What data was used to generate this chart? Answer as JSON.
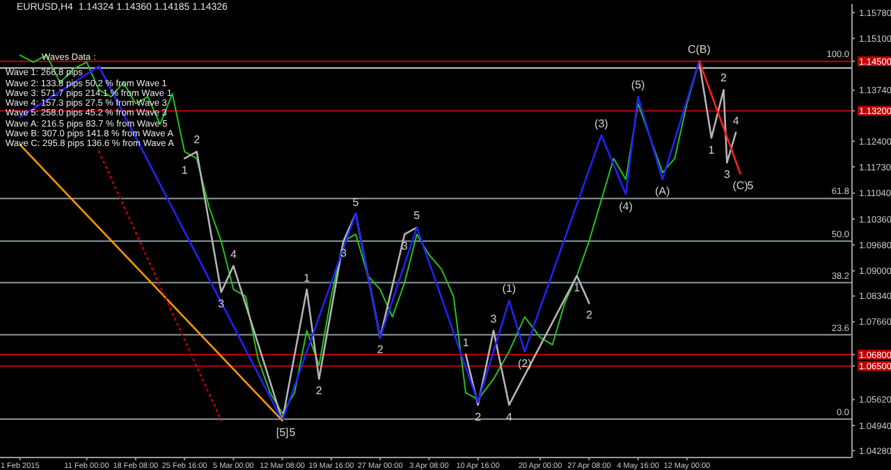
{
  "chart_data": {
    "type": "line",
    "title": "EURUSD,H4  1.14324 1.14360 1.14185 1.14326",
    "x": [
      "2015-02-01T00:00",
      "2015-02-03T00:00",
      "2015-02-05T00:00",
      "2015-02-07T00:00",
      "2015-02-09T00:00",
      "2015-02-11T00:00",
      "2015-02-12T20:00",
      "2015-02-14T16:00",
      "2015-02-16T12:00",
      "2015-02-18T08:00",
      "2015-02-20T04:00",
      "2015-02-22T00:00",
      "2015-02-23T20:00",
      "2015-02-25T16:00",
      "2015-02-27T12:00",
      "2015-03-01T08:00",
      "2015-03-03T04:00",
      "2015-03-05T00:00",
      "2015-03-06T20:00",
      "2015-03-08T16:00",
      "2015-03-10T12:00",
      "2015-03-12T08:00",
      "2015-03-14T04:00",
      "2015-03-16T00:00",
      "2015-03-17T20:00",
      "2015-03-19T16:00",
      "2015-03-21T12:00",
      "2015-03-23T08:00",
      "2015-03-25T04:00",
      "2015-03-27T00:00",
      "2015-03-28T20:00",
      "2015-03-30T16:00",
      "2015-04-01T12:00",
      "2015-04-03T08:00",
      "2015-04-05T04:00",
      "2015-04-07T00:00",
      "2015-04-08T20:00",
      "2015-04-10T16:00",
      "2015-04-13T00:00",
      "2015-04-15T08:00",
      "2015-04-17T16:00",
      "2015-04-20T00:00",
      "2015-04-21T20:00",
      "2015-04-23T16:00",
      "2015-04-25T12:00",
      "2015-04-27T08:00",
      "2015-04-29T04:00",
      "2015-05-01T00:00",
      "2015-05-02T20:00",
      "2015-05-04T16:00",
      "2015-05-06T12:00",
      "2015-05-08T08:00",
      "2015-05-10T04:00",
      "2015-05-12T00:00",
      "2015-05-13T20:00"
    ],
    "xlim": [
      "2015-01-29T00:00",
      "2015-06-05T18:00"
    ],
    "xticks": [
      {
        "value": "2015-02-01T00:00",
        "label": "1 Feb 2015"
      },
      {
        "value": "2015-02-11T00:00",
        "label": "11 Feb 00:00"
      },
      {
        "value": "2015-02-18T08:00",
        "label": "18 Feb 08:00"
      },
      {
        "value": "2015-02-25T16:00",
        "label": "25 Feb 16:00"
      },
      {
        "value": "2015-03-05T00:00",
        "label": "5 Mar 00:00"
      },
      {
        "value": "2015-03-12T08:00",
        "label": "12 Mar 08:00"
      },
      {
        "value": "2015-03-19T16:00",
        "label": "19 Mar 16:00"
      },
      {
        "value": "2015-03-27T00:00",
        "label": "27 Mar 00:00"
      },
      {
        "value": "2015-04-03T08:00",
        "label": "3 Apr 08:00"
      },
      {
        "value": "2015-04-10T16:00",
        "label": "10 Apr 16:00"
      },
      {
        "value": "2015-04-20T00:00",
        "label": "20 Apr 00:00"
      },
      {
        "value": "2015-04-27T08:00",
        "label": "27 Apr 08:00"
      },
      {
        "value": "2015-05-04T16:00",
        "label": "4 May 16:00"
      },
      {
        "value": "2015-05-12T00:00",
        "label": "12 May 00:00"
      }
    ],
    "ylim": [
      1.041,
      1.16
    ],
    "yticks": [
      {
        "value": 1.1578,
        "label": "1.15780"
      },
      {
        "value": 1.151,
        "label": "1.15100"
      },
      {
        "value": 1.145,
        "label": "1.14500"
      },
      {
        "value": 1.1374,
        "label": "1.13740"
      },
      {
        "value": 1.132,
        "label": "1.13200"
      },
      {
        "value": 1.124,
        "label": "1.12400"
      },
      {
        "value": 1.1173,
        "label": "1.11730"
      },
      {
        "value": 1.1104,
        "label": "1.11040"
      },
      {
        "value": 1.1036,
        "label": "1.10360"
      },
      {
        "value": 1.0968,
        "label": "1.09680"
      },
      {
        "value": 1.09,
        "label": "1.09000"
      },
      {
        "value": 1.0834,
        "label": "1.08340"
      },
      {
        "value": 1.0766,
        "label": "1.07660"
      },
      {
        "value": 1.068,
        "label": "1.06800"
      },
      {
        "value": 1.065,
        "label": "1.06500"
      },
      {
        "value": 1.0562,
        "label": "1.05620"
      },
      {
        "value": 1.0494,
        "label": "1.04940"
      },
      {
        "value": 1.0428,
        "label": "1.04280"
      }
    ],
    "marker": "none",
    "series": [
      {
        "color": "#22c322",
        "values": [
          1.1466,
          1.1448,
          1.1466,
          1.1394,
          1.143,
          1.1448,
          1.1375,
          1.1357,
          1.1394,
          1.1339,
          1.1357,
          1.1285,
          1.1365,
          1.1213,
          1.1195,
          1.1068,
          1.0978,
          1.0851,
          1.0833,
          1.067,
          1.058,
          1.0526,
          1.058,
          1.0743,
          1.0652,
          1.0833,
          1.0978,
          1.0996,
          1.0887,
          1.0851,
          1.0779,
          1.0869,
          1.0996,
          1.0942,
          1.0905,
          1.0833,
          1.058,
          1.0562,
          1.0616,
          1.0688,
          1.0779,
          1.0725,
          1.0706,
          1.0815,
          1.0887,
          1.0978,
          1.1086,
          1.1195,
          1.114,
          1.1339,
          1.1249,
          1.1158,
          1.1195,
          1.1339,
          1.145
        ]
      },
      {
        "color": "#b4b4b4",
        "x": [
          "2015-02-25T16:00",
          "2015-02-27T12:00",
          "2015-03-03T04:00",
          "2015-03-05T00:00",
          "2015-03-12T08:00",
          "2015-03-16T00:00",
          "2015-03-17T20:00",
          "2015-03-21T12:00",
          "2015-03-23T08:00",
          "2015-03-27T00:00",
          "2015-03-30T16:00",
          "2015-04-01T12:00"
        ],
        "values": [
          1.1195,
          1.1213,
          1.0844,
          1.0913,
          1.0507,
          1.0851,
          1.0616,
          1.0978,
          1.105,
          1.0725,
          1.0996,
          1.1014
        ]
      },
      {
        "color": "#b4b4b4",
        "x": [
          "2015-04-08T20:00",
          "2015-04-10T16:00",
          "2015-04-13T00:00",
          "2015-04-15T08:00",
          "2015-04-25T12:00",
          "2015-04-27T08:00"
        ],
        "values": [
          1.0681,
          1.0548,
          1.0743,
          1.0548,
          1.0887,
          1.0815
        ]
      },
      {
        "color": "#b4b4b4",
        "x": [
          "2015-05-13T20:00",
          "2015-05-15T16:00",
          "2015-05-17T12:00",
          "2015-05-18T00:00",
          "2015-05-19T08:00"
        ],
        "values": [
          1.145,
          1.1249,
          1.1375,
          1.1184,
          1.1263
        ]
      },
      {
        "color": "#2222ff",
        "x": [
          "2015-02-01T00:00",
          "2015-02-12T20:00",
          "2015-03-12T08:00",
          "2015-03-23T08:00",
          "2015-03-27T00:00",
          "2015-04-01T12:00",
          "2015-04-10T16:00",
          "2015-04-15T08:00",
          "2015-04-17T16:00",
          "2015-04-29T04:00",
          "2015-05-02T20:00",
          "2015-05-04T16:00",
          "2015-05-08T08:00",
          "2015-05-13T20:00"
        ],
        "values": [
          1.1303,
          1.1437,
          1.0507,
          1.105,
          1.0725,
          1.1014,
          1.0555,
          1.0822,
          1.0688,
          1.1256,
          1.1101,
          1.1357,
          1.114,
          1.1451
        ]
      },
      {
        "color": "#ff2020",
        "x": [
          "2015-05-13T20:00",
          "2015-05-20T00:00"
        ],
        "values": [
          1.1451,
          1.1155
        ]
      },
      {
        "color": "#ff9900",
        "x": [
          "2015-02-01T00:00",
          "2015-03-12T08:00"
        ],
        "values": [
          1.1231,
          1.0507
        ]
      },
      {
        "color": "#c00000",
        "line_style": "dotted",
        "x": [
          "2015-02-12T20:00",
          "2015-03-03T04:00"
        ],
        "values": [
          1.1213,
          1.0507
        ]
      }
    ],
    "ref_lines": [
      {
        "axis": "y",
        "value": 1.145,
        "color": "#c00000"
      },
      {
        "axis": "y",
        "value": 1.14326,
        "color": "#d0d0d0"
      },
      {
        "axis": "y",
        "value": 1.132,
        "color": "#c00000"
      },
      {
        "axis": "y",
        "value": 1.109,
        "color": "#8c9ca0"
      },
      {
        "axis": "y",
        "value": 1.0978,
        "color": "#8c9ca0"
      },
      {
        "axis": "y",
        "value": 1.0869,
        "color": "#8c9ca0"
      },
      {
        "axis": "y",
        "value": 1.0732,
        "color": "#8c9ca0"
      },
      {
        "axis": "y",
        "value": 1.068,
        "color": "#c00000"
      },
      {
        "axis": "y",
        "value": 1.065,
        "color": "#c00000"
      },
      {
        "axis": "y",
        "value": 1.0511,
        "color": "#8c9ca0"
      }
    ],
    "annotations": [
      "Waves Data :",
      "Wave 1: 266.8 pips",
      "Wave 2: 133.8 pips 50.2 % from Wave 1",
      "Wave 3: 571.7 pips 214.1 % from Wave 1",
      "Wave 4: 157.3 pips 27.5 % from Wave 3",
      "Wave 5: 258.0 pips 45.2 % from Wave 3",
      "Wave A: 216.5 pips 83.7 % from Wave 5",
      "Wave B: 307.0 pips 141.8 % from Wave A",
      "Wave C: 295.8 pips 136.6 % from Wave A",
      {
        "text": "100.0",
        "y": 1.145
      },
      {
        "text": "61.8",
        "y": 1.109
      },
      {
        "text": "50.0",
        "y": 1.0978
      },
      {
        "text": "38.2",
        "y": 1.0869
      },
      {
        "text": "23.6",
        "y": 1.0732
      },
      {
        "text": "0.0",
        "y": 1.0511
      },
      {
        "text": "1",
        "x": "2015-02-25T16:00",
        "y": 1.1195
      },
      {
        "text": "2",
        "x": "2015-02-27T12:00",
        "y": 1.1213
      },
      {
        "text": "3",
        "x": "2015-03-03T04:00",
        "y": 1.0844
      },
      {
        "text": "4",
        "x": "2015-03-05T00:00",
        "y": 1.0913
      },
      {
        "text": "[5]",
        "x": "2015-03-12T08:00",
        "y": 1.0507
      },
      {
        "text": "5",
        "x": "2015-03-12T08:00",
        "y": 1.0507
      },
      {
        "text": "1",
        "x": "2015-03-16T00:00",
        "y": 1.0851
      },
      {
        "text": "2",
        "x": "2015-03-17T20:00",
        "y": 1.0616
      },
      {
        "text": "3",
        "x": "2015-03-21T12:00",
        "y": 1.0978
      },
      {
        "text": "5",
        "x": "2015-03-23T08:00",
        "y": 1.105
      },
      {
        "text": "2",
        "x": "2015-03-27T00:00",
        "y": 1.0725
      },
      {
        "text": "3",
        "x": "2015-03-30T16:00",
        "y": 1.0996
      },
      {
        "text": "5",
        "x": "2015-04-01T12:00",
        "y": 1.1014
      },
      {
        "text": "1",
        "x": "2015-04-08T20:00",
        "y": 1.0681
      },
      {
        "text": "2",
        "x": "2015-04-10T16:00",
        "y": 1.0548
      },
      {
        "text": "3",
        "x": "2015-04-13T00:00",
        "y": 1.0743
      },
      {
        "text": "4",
        "x": "2015-04-15T08:00",
        "y": 1.0548
      },
      {
        "text": "(1)",
        "x": "2015-04-15T08:00",
        "y": 1.0822
      },
      {
        "text": "(2)",
        "x": "2015-04-17T16:00",
        "y": 1.0688
      },
      {
        "text": "1",
        "x": "2015-04-25T12:00",
        "y": 1.0887
      },
      {
        "text": "2",
        "x": "2015-04-27T08:00",
        "y": 1.0815
      },
      {
        "text": "(3)",
        "x": "2015-04-29T04:00",
        "y": 1.1256
      },
      {
        "text": "(4)",
        "x": "2015-05-02T20:00",
        "y": 1.1101
      },
      {
        "text": "(5)",
        "x": "2015-05-04T16:00",
        "y": 1.1357
      },
      {
        "text": "(A)",
        "x": "2015-05-08T08:00",
        "y": 1.114
      },
      {
        "text": "C(B)",
        "x": "2015-05-13T20:00",
        "y": 1.1451
      },
      {
        "text": "1",
        "x": "2015-05-15T16:00",
        "y": 1.1249
      },
      {
        "text": "2",
        "x": "2015-05-17T12:00",
        "y": 1.1375
      },
      {
        "text": "3",
        "x": "2015-05-18T00:00",
        "y": 1.1184
      },
      {
        "text": "4",
        "x": "2015-05-19T08:00",
        "y": 1.1263
      },
      {
        "text": "(C)",
        "x": "2015-05-20T00:00",
        "y": 1.1155
      },
      {
        "text": "5",
        "x": "2015-05-20T00:00",
        "y": 1.1155
      }
    ]
  }
}
